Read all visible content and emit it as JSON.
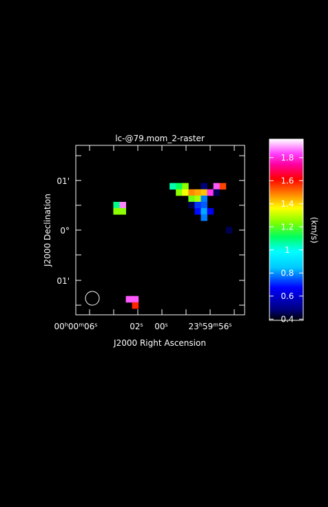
{
  "chart_data": {
    "type": "heatmap",
    "title": "lc-@79.mom_2-raster",
    "xlabel": "J2000 Right Ascension",
    "ylabel": "J2000 Declination",
    "x_ticks": [
      {
        "h": "00",
        "m": "00",
        "s": "06"
      },
      {
        "h": "",
        "m": "",
        "s": "02"
      },
      {
        "h": "",
        "m": "",
        "s": "00"
      },
      {
        "h": "23",
        "m": "59",
        "s": "56"
      }
    ],
    "y_ticks": [
      "01'",
      "0°",
      "01'"
    ],
    "colorbar": {
      "label": "(km/s)",
      "range": [
        0.39,
        1.96
      ],
      "ticks": [
        "1.8",
        "1.6",
        "1.4",
        "1.2",
        "1",
        "0.8",
        "0.6",
        "0.4"
      ],
      "tick_values": [
        1.8,
        1.6,
        1.4,
        1.2,
        1.0,
        0.8,
        0.6,
        0.4
      ]
    },
    "grid": {
      "cols": 27,
      "rows": 27
    },
    "pixels": [
      {
        "col": 15,
        "row": 6,
        "v": 1.05
      },
      {
        "col": 16,
        "row": 6,
        "v": 1.12
      },
      {
        "col": 17,
        "row": 6,
        "v": 1.25
      },
      {
        "col": 20,
        "row": 6,
        "v": 0.48
      },
      {
        "col": 22,
        "row": 6,
        "v": 1.85
      },
      {
        "col": 23,
        "row": 6,
        "v": 1.55
      },
      {
        "col": 16,
        "row": 7,
        "v": 1.25
      },
      {
        "col": 17,
        "row": 7,
        "v": 1.35
      },
      {
        "col": 18,
        "row": 7,
        "v": 1.48
      },
      {
        "col": 19,
        "row": 7,
        "v": 1.45
      },
      {
        "col": 20,
        "row": 7,
        "v": 1.42
      },
      {
        "col": 21,
        "row": 7,
        "v": 1.82
      },
      {
        "col": 22,
        "row": 7,
        "v": 0.45
      },
      {
        "col": 18,
        "row": 8,
        "v": 1.22
      },
      {
        "col": 19,
        "row": 8,
        "v": 1.28
      },
      {
        "col": 20,
        "row": 8,
        "v": 0.78
      },
      {
        "col": 6,
        "row": 9,
        "v": 1.08
      },
      {
        "col": 7,
        "row": 9,
        "v": 1.88
      },
      {
        "col": 18,
        "row": 9,
        "v": 0.45
      },
      {
        "col": 19,
        "row": 9,
        "v": 0.72
      },
      {
        "col": 20,
        "row": 9,
        "v": 0.75
      },
      {
        "col": 6,
        "row": 10,
        "v": 1.25
      },
      {
        "col": 7,
        "row": 10,
        "v": 1.25
      },
      {
        "col": 19,
        "row": 10,
        "v": 0.68
      },
      {
        "col": 20,
        "row": 10,
        "v": 0.82
      },
      {
        "col": 21,
        "row": 10,
        "v": 0.66
      },
      {
        "col": 20,
        "row": 11,
        "v": 0.78
      },
      {
        "col": 24,
        "row": 13,
        "v": 0.45
      },
      {
        "col": 8,
        "row": 24,
        "v": 1.85
      },
      {
        "col": 9,
        "row": 24,
        "v": 1.85
      },
      {
        "col": 9,
        "row": 25,
        "v": 1.58
      }
    ]
  }
}
